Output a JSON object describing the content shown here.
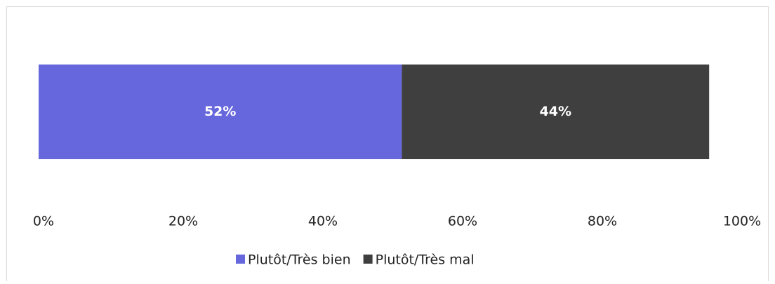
{
  "chart_data": {
    "type": "stacked_bar_horizontal",
    "categories": [
      null
    ],
    "series": [
      {
        "name": "Plutôt/Très bien",
        "color": "#6666dd",
        "values": [
          52
        ],
        "value_labels": [
          "52%"
        ]
      },
      {
        "name": "Plutôt/Très mal",
        "color": "#3f3f3f",
        "values": [
          44
        ],
        "value_labels": [
          "44%"
        ]
      }
    ],
    "xlim": [
      0,
      100
    ],
    "xticks": [
      {
        "value": 0,
        "label": "0%"
      },
      {
        "value": 20,
        "label": "20%"
      },
      {
        "value": 40,
        "label": "40%"
      },
      {
        "value": 60,
        "label": "60%"
      },
      {
        "value": 80,
        "label": "80%"
      },
      {
        "value": 100,
        "label": "100%"
      }
    ],
    "legend": "bottom"
  }
}
